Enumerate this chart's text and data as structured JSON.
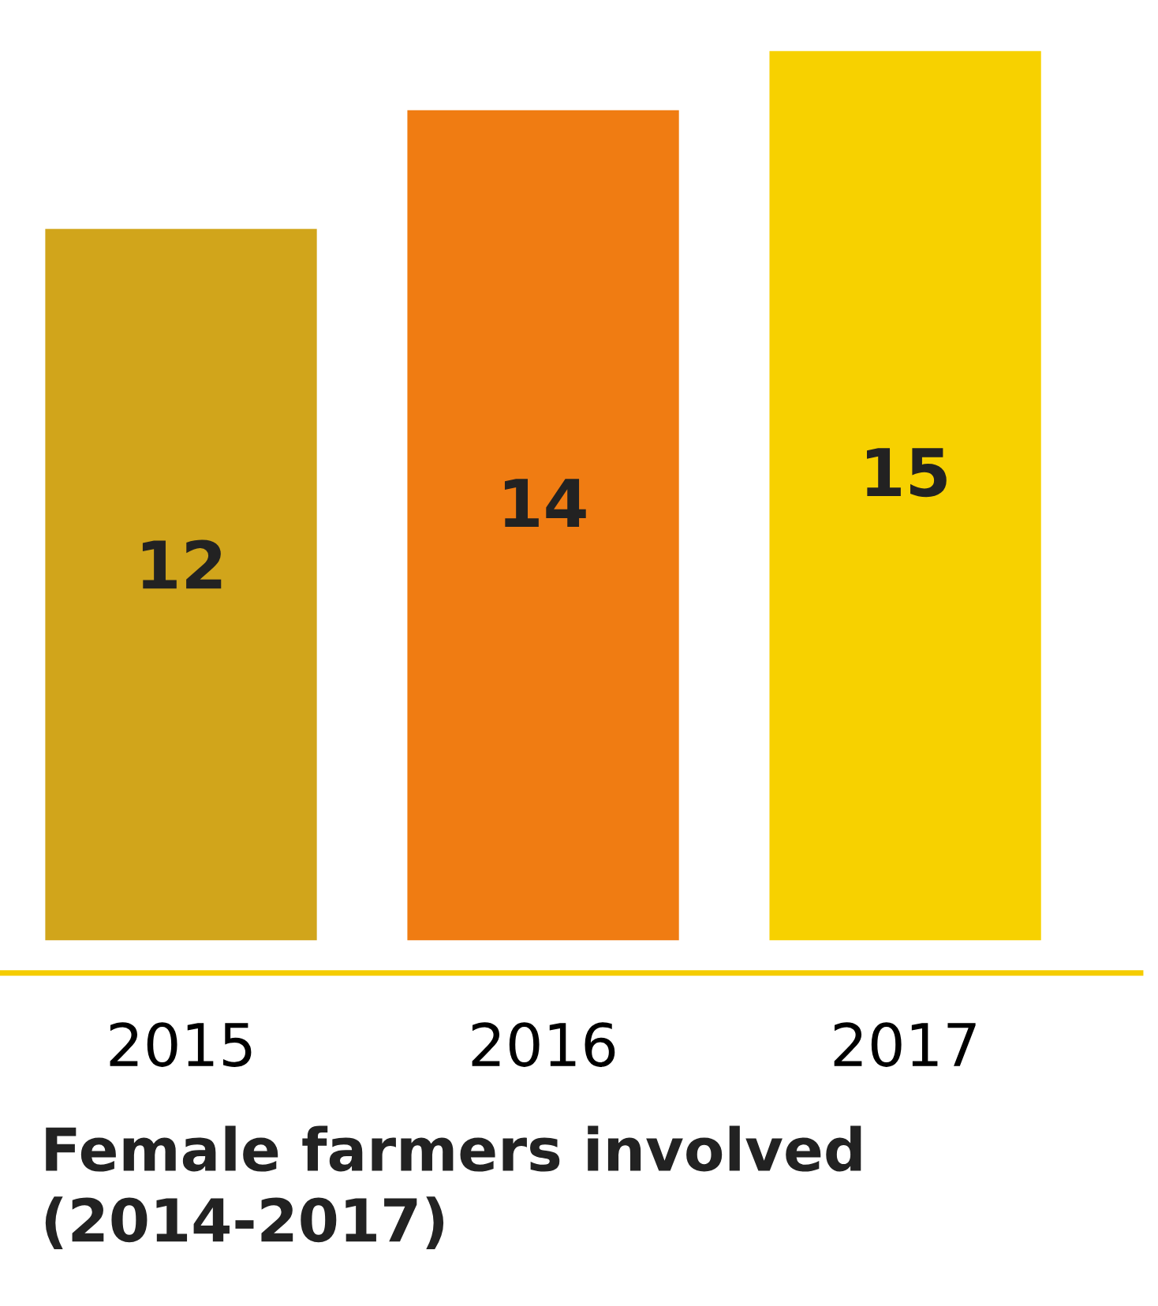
{
  "chart_data": {
    "type": "bar",
    "title": "Female farmers involved\n(2014-2017)",
    "categories": [
      "2015",
      "2016",
      "2017"
    ],
    "values": [
      12,
      14,
      15
    ],
    "colors": [
      "#d1a51b",
      "#f07c12",
      "#f7d100"
    ],
    "data_labels": true
  }
}
